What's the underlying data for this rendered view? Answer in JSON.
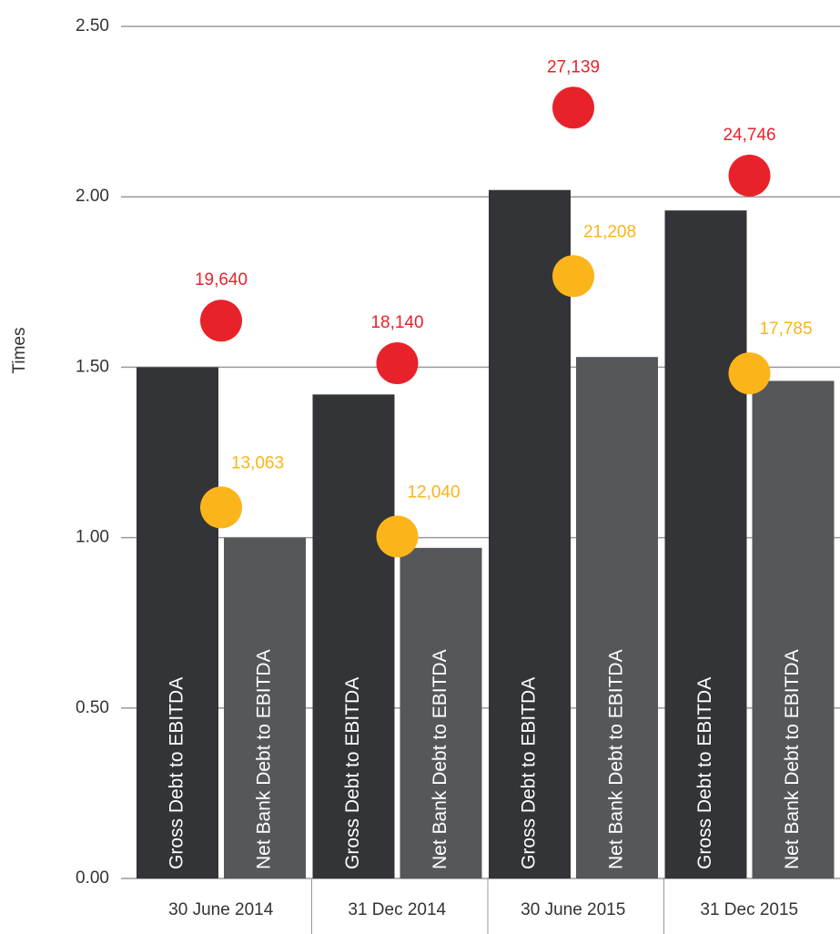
{
  "chart_data": {
    "type": "bar",
    "y_label": "Times",
    "categories": [
      "30 June 2014",
      "31 Dec 2014",
      "30 June 2015",
      "31 Dec 2015"
    ],
    "series": [
      {
        "name": "Gross Debt to EBITDA",
        "color": "#333437",
        "values": [
          1.5,
          1.42,
          2.02,
          1.96
        ]
      },
      {
        "name": "Net Bank Debt to EBITDA",
        "color": "#56575a",
        "values": [
          1.0,
          0.97,
          1.53,
          1.46
        ]
      }
    ],
    "markers": [
      {
        "color": "#e8222a",
        "axis": "y2",
        "values": [
          19640,
          18140,
          27139,
          24746
        ],
        "value_labels": [
          "19,640",
          "18,140",
          "27,139",
          "24,746"
        ]
      },
      {
        "color": "#fbb41a",
        "axis": "y2",
        "values": [
          13063,
          12040,
          21208,
          17785
        ],
        "value_labels": [
          "13,063",
          "12,040",
          "21,208",
          "17,785"
        ]
      }
    ],
    "ylim": [
      0,
      2.5
    ],
    "yticks": [
      {
        "value": 0,
        "label": "0.00"
      },
      {
        "value": 0.5,
        "label": "0.50"
      },
      {
        "value": 1,
        "label": "1.00"
      },
      {
        "value": 1.5,
        "label": "1.50"
      },
      {
        "value": 2,
        "label": "2.00"
      },
      {
        "value": 2.5,
        "label": "2.50"
      }
    ],
    "y2lim": [
      0,
      30000
    ],
    "grid": true
  }
}
